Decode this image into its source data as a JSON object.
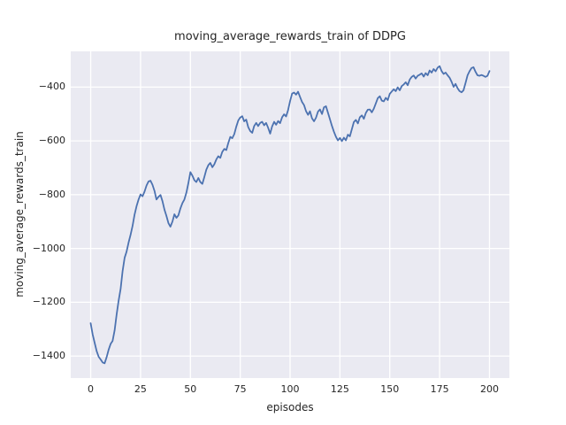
{
  "figure": {
    "background": "#ffffff",
    "text_color": "#262626"
  },
  "chart_data": {
    "type": "line",
    "title": "moving_average_rewards_train of DDPG",
    "xlabel": "episodes",
    "ylabel": "moving_average_rewards_train",
    "legend": false,
    "grid": true,
    "plot_background": "#eaeaf2",
    "grid_color": "#ffffff",
    "xlim": [
      -10,
      210
    ],
    "ylim": [
      -1482,
      -267
    ],
    "xticks": [
      0,
      25,
      50,
      75,
      100,
      125,
      150,
      175,
      200
    ],
    "xtick_labels": [
      "0",
      "25",
      "50",
      "75",
      "100",
      "125",
      "150",
      "175",
      "200"
    ],
    "yticks": [
      -400,
      -600,
      -800,
      -1000,
      -1200,
      -1400
    ],
    "ytick_labels": [
      "−400",
      "−600",
      "−800",
      "−1000",
      "−1200",
      "−1400"
    ],
    "series": [
      {
        "name": "moving_average_rewards_train",
        "color": "#4c72b0",
        "line_width": 1.8,
        "x_start": 0,
        "x_step": 1,
        "values": [
          -1278,
          -1320,
          -1352,
          -1382,
          -1403,
          -1413,
          -1424,
          -1427,
          -1404,
          -1377,
          -1355,
          -1344,
          -1305,
          -1245,
          -1195,
          -1150,
          -1085,
          -1035,
          -1012,
          -978,
          -950,
          -916,
          -875,
          -843,
          -818,
          -799,
          -806,
          -789,
          -766,
          -751,
          -748,
          -763,
          -786,
          -818,
          -808,
          -801,
          -824,
          -856,
          -879,
          -906,
          -919,
          -900,
          -873,
          -886,
          -877,
          -851,
          -831,
          -818,
          -792,
          -757,
          -716,
          -729,
          -746,
          -753,
          -738,
          -753,
          -760,
          -734,
          -707,
          -690,
          -682,
          -698,
          -687,
          -669,
          -657,
          -663,
          -641,
          -630,
          -634,
          -608,
          -585,
          -590,
          -575,
          -548,
          -524,
          -513,
          -508,
          -527,
          -521,
          -549,
          -563,
          -570,
          -545,
          -533,
          -545,
          -533,
          -529,
          -542,
          -533,
          -551,
          -573,
          -546,
          -529,
          -540,
          -526,
          -534,
          -512,
          -501,
          -509,
          -486,
          -452,
          -424,
          -420,
          -428,
          -417,
          -437,
          -455,
          -467,
          -489,
          -503,
          -490,
          -516,
          -527,
          -514,
          -491,
          -483,
          -500,
          -475,
          -471,
          -495,
          -520,
          -544,
          -566,
          -585,
          -598,
          -589,
          -601,
          -588,
          -598,
          -577,
          -583,
          -556,
          -530,
          -522,
          -535,
          -512,
          -505,
          -518,
          -496,
          -484,
          -483,
          -494,
          -480,
          -461,
          -441,
          -434,
          -450,
          -453,
          -440,
          -448,
          -425,
          -416,
          -408,
          -415,
          -401,
          -412,
          -396,
          -390,
          -382,
          -393,
          -372,
          -362,
          -357,
          -368,
          -358,
          -354,
          -349,
          -361,
          -348,
          -356,
          -338,
          -346,
          -333,
          -341,
          -328,
          -322,
          -340,
          -351,
          -346,
          -356,
          -365,
          -380,
          -399,
          -388,
          -404,
          -415,
          -419,
          -412,
          -385,
          -356,
          -341,
          -329,
          -326,
          -343,
          -356,
          -358,
          -355,
          -358,
          -362,
          -358,
          -340
        ]
      }
    ]
  }
}
